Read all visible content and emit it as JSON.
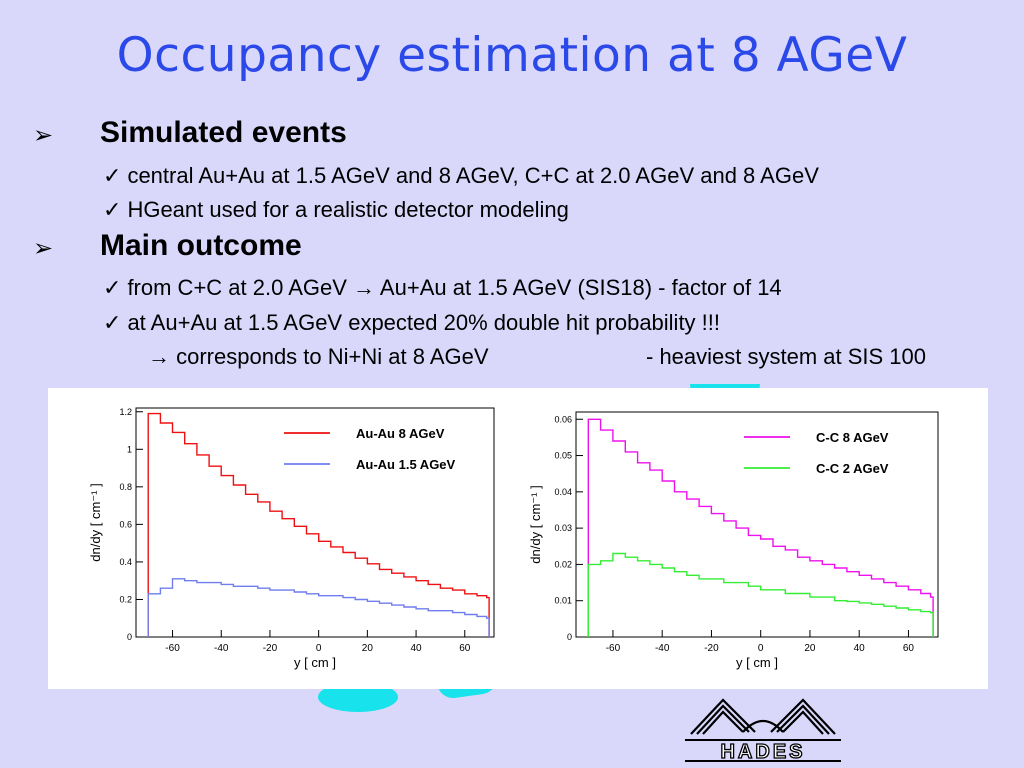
{
  "slide": {
    "title": "Occupancy estimation at 8 AGeV",
    "bullets": [
      {
        "marker": "➢",
        "heading": "Simulated events",
        "lines": [
          "central Au+Au at 1.5 AGeV and 8 AGeV, C+C at 2.0 AGeV and 8 AGeV",
          "HGeant used for a realistic detector modeling"
        ]
      },
      {
        "marker": "➢",
        "heading": "Main outcome",
        "lines": [
          "from C+C at 2.0 AGeV → Au+Au at 1.5 AGeV (SIS18) -  factor of 14",
          "at Au+Au at 1.5 AGeV expected 20% double hit probability !!!"
        ],
        "subline_left": "→ corresponds to Ni+Ni at 8 AGeV",
        "subline_right": "- heaviest system at SIS 100"
      }
    ],
    "check_symbol": "✓",
    "logo_text": "HADES",
    "colors": {
      "title": "#2b49e8",
      "background": "#d9d8fb",
      "decoration": "#18e3ec"
    }
  },
  "chart_data": [
    {
      "type": "line",
      "xlabel": "y [ cm ]",
      "ylabel": "dn/dy [ cm⁻¹ ]",
      "xlim": [
        -75,
        72
      ],
      "ylim": [
        0,
        1.22
      ],
      "xticks": [
        -60,
        -40,
        -20,
        0,
        20,
        40,
        60
      ],
      "xtick_labels": [
        "-60",
        "-40",
        "-20",
        "0",
        "20",
        "40",
        "60"
      ],
      "yticks": [
        0,
        0.2,
        0.4,
        0.6,
        0.8,
        1,
        1.2
      ],
      "ytick_labels": [
        "0",
        "0.2",
        "0.4",
        "0.6",
        "0.8",
        "1",
        "1.2"
      ],
      "legend_position": "top-right",
      "x": [
        -70,
        -65,
        -60,
        -55,
        -50,
        -45,
        -40,
        -35,
        -30,
        -25,
        -20,
        -15,
        -10,
        -5,
        0,
        5,
        10,
        15,
        20,
        25,
        30,
        35,
        40,
        45,
        50,
        55,
        60,
        65,
        69
      ],
      "series": [
        {
          "name": "Au-Au  8 AGeV",
          "color": "#ee1111",
          "values": [
            1.19,
            1.14,
            1.09,
            1.03,
            0.97,
            0.91,
            0.86,
            0.81,
            0.76,
            0.72,
            0.67,
            0.63,
            0.59,
            0.55,
            0.51,
            0.48,
            0.45,
            0.42,
            0.39,
            0.36,
            0.34,
            0.32,
            0.3,
            0.28,
            0.26,
            0.25,
            0.23,
            0.22,
            0.21
          ]
        },
        {
          "name": "Au-Au  1.5 AGeV",
          "color": "#6f7dee",
          "values": [
            0.23,
            0.26,
            0.31,
            0.3,
            0.29,
            0.29,
            0.28,
            0.27,
            0.27,
            0.26,
            0.25,
            0.25,
            0.24,
            0.23,
            0.22,
            0.22,
            0.21,
            0.2,
            0.19,
            0.18,
            0.17,
            0.16,
            0.15,
            0.14,
            0.14,
            0.13,
            0.12,
            0.11,
            0.1
          ]
        }
      ]
    },
    {
      "type": "line",
      "xlabel": "y [ cm ]",
      "ylabel": "dn/dy [ cm⁻¹ ]",
      "xlim": [
        -75,
        72
      ],
      "ylim": [
        0,
        0.062
      ],
      "xticks": [
        -60,
        -40,
        -20,
        0,
        20,
        40,
        60
      ],
      "xtick_labels": [
        "-60",
        "-40",
        "-20",
        "0",
        "20",
        "40",
        "60"
      ],
      "yticks": [
        0,
        0.01,
        0.02,
        0.03,
        0.04,
        0.05,
        0.06
      ],
      "ytick_labels": [
        "0",
        "0.01",
        "0.02",
        "0.03",
        "0.04",
        "0.05",
        "0.06"
      ],
      "legend_position": "top-right",
      "x": [
        -70,
        -65,
        -60,
        -55,
        -50,
        -45,
        -40,
        -35,
        -30,
        -25,
        -20,
        -15,
        -10,
        -5,
        0,
        5,
        10,
        15,
        20,
        25,
        30,
        35,
        40,
        45,
        50,
        55,
        60,
        65,
        69
      ],
      "series": [
        {
          "name": "C-C  8 AGeV",
          "color": "#ee11ee",
          "values": [
            0.06,
            0.057,
            0.054,
            0.051,
            0.048,
            0.046,
            0.043,
            0.04,
            0.038,
            0.036,
            0.034,
            0.032,
            0.03,
            0.028,
            0.027,
            0.025,
            0.024,
            0.022,
            0.021,
            0.02,
            0.019,
            0.018,
            0.017,
            0.016,
            0.015,
            0.014,
            0.013,
            0.012,
            0.011
          ]
        },
        {
          "name": "C-C  2 AGeV",
          "color": "#33ee33",
          "values": [
            0.02,
            0.021,
            0.023,
            0.022,
            0.021,
            0.02,
            0.019,
            0.018,
            0.017,
            0.016,
            0.016,
            0.015,
            0.015,
            0.014,
            0.013,
            0.013,
            0.012,
            0.012,
            0.011,
            0.011,
            0.01,
            0.0098,
            0.0094,
            0.009,
            0.0085,
            0.008,
            0.0075,
            0.007,
            0.0067
          ]
        }
      ]
    }
  ]
}
